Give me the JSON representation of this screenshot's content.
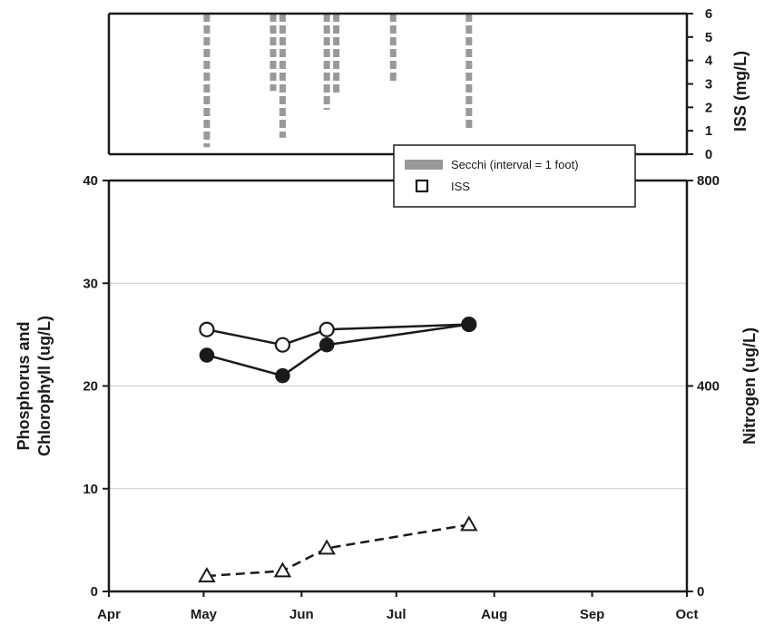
{
  "chart_data": [
    {
      "type": "bar",
      "panel": "top",
      "ylabel": "ISS (mg/L)",
      "ylim": [
        0,
        6
      ],
      "yticks": [
        "0",
        "1",
        "2",
        "3",
        "4",
        "5",
        "6"
      ],
      "secchi_bars": [
        {
          "x": "2008-05-02",
          "depth_bottom": 0.3
        },
        {
          "x": "2008-05-23",
          "depth_bottom": 2.7
        },
        {
          "x": "2008-05-26",
          "depth_bottom": 0.7
        },
        {
          "x": "2008-06-09",
          "depth_bottom": 1.9
        },
        {
          "x": "2008-06-12",
          "depth_bottom": 2.6
        },
        {
          "x": "2008-06-30",
          "depth_bottom": 3.0
        },
        {
          "x": "2008-07-24",
          "depth_bottom": 1.0
        }
      ],
      "legend": {
        "placement": "bottom-right",
        "entries": [
          {
            "label": "Secchi (interval = 1 foot)",
            "symbol": "bar",
            "color": "#999999"
          },
          {
            "label": "ISS",
            "symbol": "open-square",
            "color": "#000000"
          }
        ]
      }
    },
    {
      "type": "line",
      "panel": "bottom",
      "ylabel_left": "Phosphorus and Chlorophyll (ug/L)",
      "ylabel_right": "Nitrogen (ug/L)",
      "ylim_left": [
        0,
        40
      ],
      "ylim_right": [
        0,
        800
      ],
      "yticks_left": [
        "0",
        "10",
        "20",
        "30",
        "40"
      ],
      "yticks_right": [
        "0",
        "400",
        "800"
      ],
      "xticks": [
        "Apr",
        "May",
        "Jun",
        "Jul",
        "Aug",
        "Sep",
        "Oct"
      ],
      "xtick_dates": [
        "2008-04-01",
        "2008-05-01",
        "2008-06-01",
        "2008-07-01",
        "2008-08-01",
        "2008-09-01",
        "2008-10-01"
      ],
      "grid_y": true,
      "series": [
        {
          "marker": "open-circle",
          "line": "solid",
          "axis": "left",
          "points": [
            {
              "x": "2008-05-02",
              "y": 25.5
            },
            {
              "x": "2008-05-26",
              "y": 24.0
            },
            {
              "x": "2008-06-09",
              "y": 25.5
            },
            {
              "x": "2008-07-24",
              "y": 26.0
            }
          ]
        },
        {
          "marker": "filled-circle",
          "line": "solid",
          "axis": "left",
          "points": [
            {
              "x": "2008-05-02",
              "y": 23.0
            },
            {
              "x": "2008-05-26",
              "y": 21.0
            },
            {
              "x": "2008-06-09",
              "y": 24.0
            },
            {
              "x": "2008-07-24",
              "y": 26.0
            }
          ]
        },
        {
          "marker": "open-triangle",
          "line": "dashed",
          "axis": "left",
          "points": [
            {
              "x": "2008-05-02",
              "y": 1.5
            },
            {
              "x": "2008-05-26",
              "y": 2.0
            },
            {
              "x": "2008-06-09",
              "y": 4.2
            },
            {
              "x": "2008-07-24",
              "y": 6.5
            }
          ]
        }
      ]
    }
  ]
}
